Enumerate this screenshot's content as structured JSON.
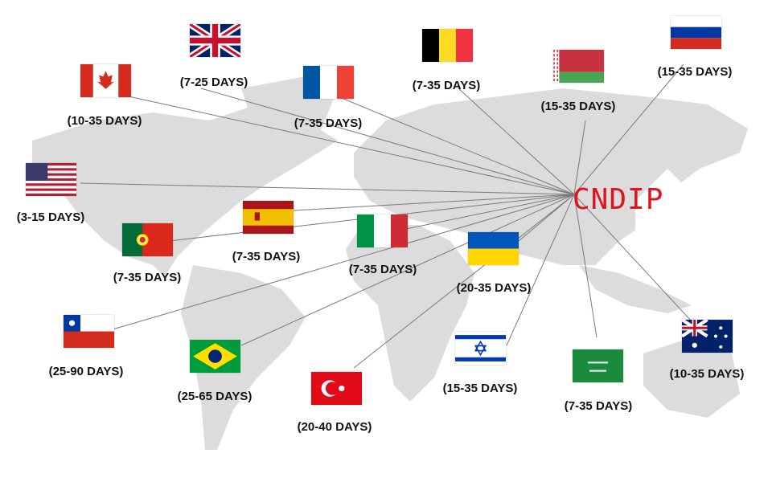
{
  "hub": {
    "label": "CNDIP",
    "color": "#e0141e"
  },
  "destinations": [
    {
      "flag": "uk-flag",
      "days": "(7-25 DAYS)"
    },
    {
      "flag": "canada-flag",
      "days": "(10-35 DAYS)"
    },
    {
      "flag": "france-flag",
      "days": "(7-35 DAYS)"
    },
    {
      "flag": "belgium-flag",
      "days": "(7-35 DAYS)"
    },
    {
      "flag": "belarus-flag",
      "days": "(15-35 DAYS)"
    },
    {
      "flag": "russia-flag",
      "days": "(15-35 DAYS)"
    },
    {
      "flag": "usa-flag",
      "days": "(3-15 DAYS)"
    },
    {
      "flag": "spain-flag",
      "days": "(7-35 DAYS)"
    },
    {
      "flag": "portugal-flag",
      "days": "(7-35 DAYS)"
    },
    {
      "flag": "italy-flag",
      "days": "(7-35 DAYS)"
    },
    {
      "flag": "ukraine-flag",
      "days": "(20-35 DAYS)"
    },
    {
      "flag": "chile-flag",
      "days": "(25-90 DAYS)"
    },
    {
      "flag": "brazil-flag",
      "days": "(25-65 DAYS)"
    },
    {
      "flag": "turkey-flag",
      "days": "(20-40 DAYS)"
    },
    {
      "flag": "israel-flag",
      "days": "(15-35 DAYS)"
    },
    {
      "flag": "saudi-arabia-flag",
      "days": "(7-35 DAYS)"
    },
    {
      "flag": "australia-flag",
      "days": "(10-35 DAYS)"
    }
  ]
}
